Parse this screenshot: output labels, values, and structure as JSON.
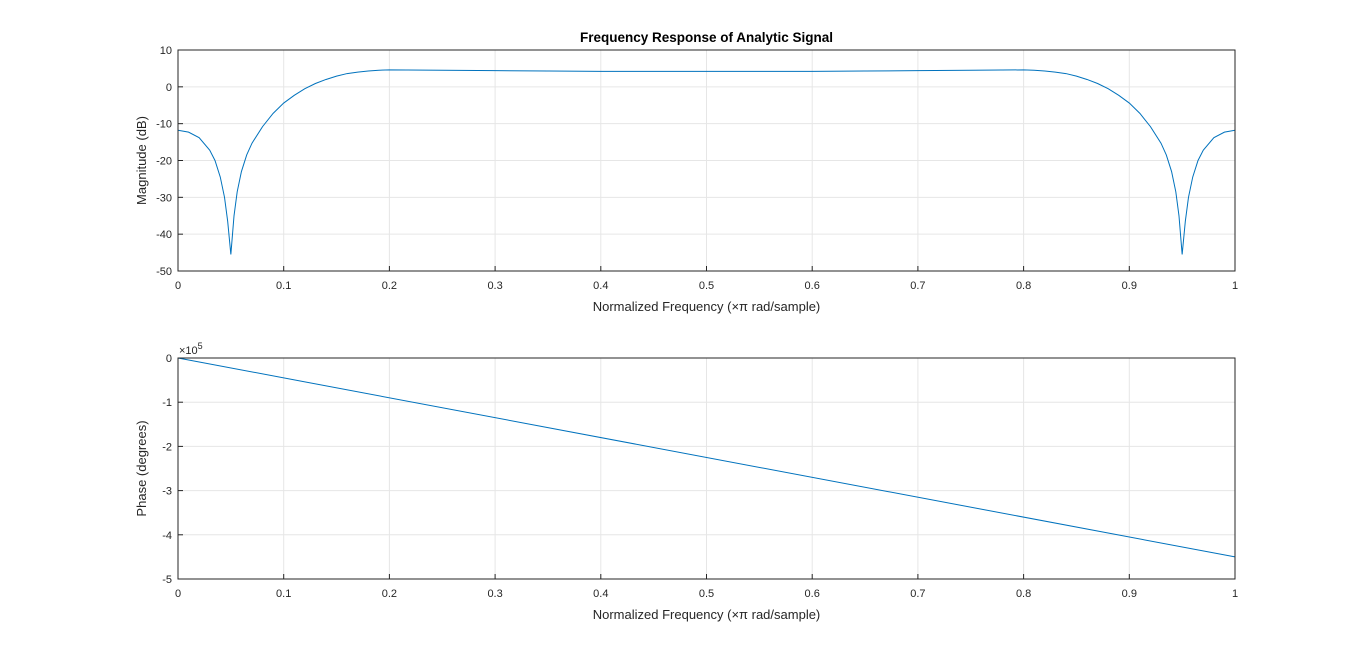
{
  "chart_data": [
    {
      "type": "line",
      "title": "Frequency Response of Analytic Signal",
      "xlabel": "Normalized Frequency  (×π rad/sample)",
      "ylabel": "Magnitude (dB)",
      "xlim": [
        0,
        1
      ],
      "ylim": [
        -50,
        10
      ],
      "xticks": [
        "0",
        "0.1",
        "0.2",
        "0.3",
        "0.4",
        "0.5",
        "0.6",
        "0.7",
        "0.8",
        "0.9",
        "1"
      ],
      "yticks": [
        "10",
        "0",
        "-10",
        "-20",
        "-30",
        "-40",
        "-50"
      ],
      "grid": true,
      "color": "#0072bd",
      "series": [
        {
          "x": [
            0,
            0.01,
            0.02,
            0.03,
            0.035,
            0.04,
            0.044,
            0.047,
            0.049,
            0.05,
            0.051,
            0.053,
            0.056,
            0.06,
            0.065,
            0.07,
            0.08,
            0.09,
            0.1,
            0.11,
            0.12,
            0.13,
            0.14,
            0.15,
            0.16,
            0.17,
            0.18,
            0.19,
            0.2,
            0.25,
            0.3,
            0.35,
            0.4,
            0.45,
            0.5,
            0.55,
            0.6,
            0.65,
            0.7,
            0.75,
            0.8,
            0.81,
            0.82,
            0.83,
            0.84,
            0.85,
            0.86,
            0.87,
            0.88,
            0.89,
            0.9,
            0.91,
            0.92,
            0.93,
            0.935,
            0.94,
            0.944,
            0.947,
            0.949,
            0.95,
            0.951,
            0.953,
            0.956,
            0.96,
            0.965,
            0.97,
            0.98,
            0.99,
            1
          ],
          "y": [
            -11.8,
            -12.3,
            -13.8,
            -17.2,
            -20.0,
            -24.5,
            -30.0,
            -36.5,
            -42.5,
            -45.5,
            -42.0,
            -35.0,
            -28.5,
            -23.0,
            -18.5,
            -15.3,
            -10.8,
            -7.2,
            -4.4,
            -2.3,
            -0.5,
            0.9,
            2.0,
            2.9,
            3.6,
            4.0,
            4.3,
            4.5,
            4.6,
            4.5,
            4.4,
            4.3,
            4.2,
            4.2,
            4.2,
            4.2,
            4.2,
            4.3,
            4.4,
            4.5,
            4.6,
            4.5,
            4.3,
            4.0,
            3.6,
            2.9,
            2.0,
            0.9,
            -0.5,
            -2.3,
            -4.4,
            -7.2,
            -10.8,
            -15.3,
            -18.5,
            -23.0,
            -28.5,
            -35.0,
            -42.0,
            -45.5,
            -42.5,
            -36.5,
            -30.0,
            -24.5,
            -20.0,
            -17.2,
            -13.8,
            -12.3,
            -11.8
          ]
        }
      ]
    },
    {
      "type": "line",
      "title": "",
      "xlabel": "Normalized Frequency  (×π rad/sample)",
      "ylabel": "Phase (degrees)",
      "xlim": [
        0,
        1
      ],
      "ylim": [
        -5,
        0
      ],
      "exponent_base": "×10",
      "exponent_power": "5",
      "xticks": [
        "0",
        "0.1",
        "0.2",
        "0.3",
        "0.4",
        "0.5",
        "0.6",
        "0.7",
        "0.8",
        "0.9",
        "1"
      ],
      "yticks": [
        "0",
        "-1",
        "-2",
        "-3",
        "-4",
        "-5"
      ],
      "grid": true,
      "color": "#0072bd",
      "series": [
        {
          "x": [
            0,
            1
          ],
          "y": [
            0,
            -4.5
          ]
        }
      ]
    }
  ]
}
